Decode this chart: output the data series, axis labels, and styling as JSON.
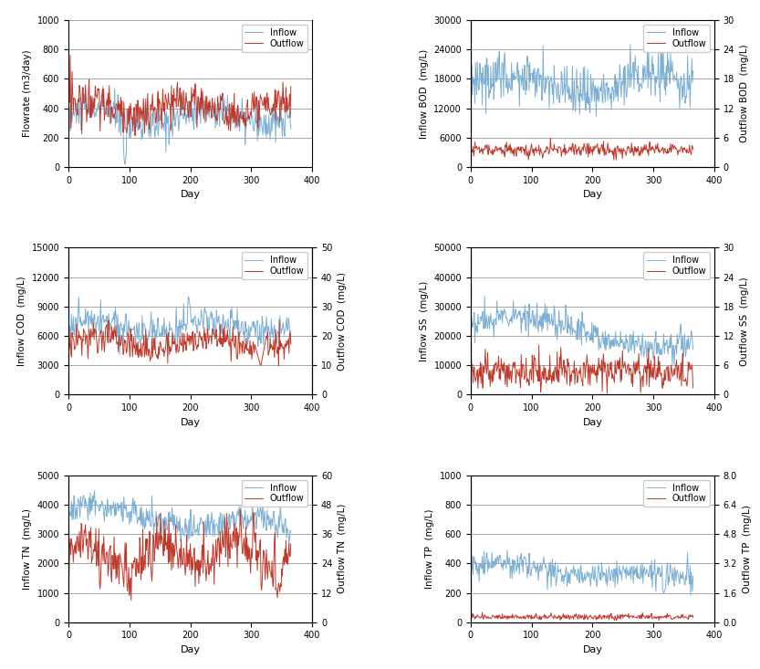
{
  "subplots": [
    {
      "left_label": "Flowrate (m3/day)",
      "right_label": "",
      "left_ylim": [
        0,
        1000
      ],
      "right_ylim": null,
      "left_yticks": [
        0,
        200,
        400,
        600,
        800,
        1000
      ],
      "right_yticks": null,
      "dual_axis": false,
      "inflow_color": "#7cafd4",
      "outflow_color": "#c0392b"
    },
    {
      "left_label": "Inflow BOD  (mg/L)",
      "right_label": "Outflow BOD  (mg/L)",
      "left_ylim": [
        0,
        30000
      ],
      "right_ylim": [
        0,
        30
      ],
      "left_yticks": [
        0,
        6000,
        12000,
        18000,
        24000,
        30000
      ],
      "right_yticks": [
        0,
        6,
        12,
        18,
        24,
        30
      ],
      "dual_axis": true,
      "inflow_color": "#7cafd4",
      "outflow_color": "#c0392b"
    },
    {
      "left_label": "Inflow COD  (mg/L)",
      "right_label": "Outflow COD  (mg/L)",
      "left_ylim": [
        0,
        15000
      ],
      "right_ylim": [
        0,
        50
      ],
      "left_yticks": [
        0,
        3000,
        6000,
        9000,
        12000,
        15000
      ],
      "right_yticks": [
        0,
        10,
        20,
        30,
        40,
        50
      ],
      "dual_axis": true,
      "inflow_color": "#7cafd4",
      "outflow_color": "#c0392b"
    },
    {
      "left_label": "Inflow SS  (mg/L)",
      "right_label": "Outflow SS  (mg/L)",
      "left_ylim": [
        0,
        50000
      ],
      "right_ylim": [
        0,
        30
      ],
      "left_yticks": [
        0,
        10000,
        20000,
        30000,
        40000,
        50000
      ],
      "right_yticks": [
        0,
        6,
        12,
        18,
        24,
        30
      ],
      "dual_axis": true,
      "inflow_color": "#7cafd4",
      "outflow_color": "#c0392b"
    },
    {
      "left_label": "Inflow TN  (mg/L)",
      "right_label": "Outflow TN  (mg/L)",
      "left_ylim": [
        0,
        5000
      ],
      "right_ylim": [
        0,
        60
      ],
      "left_yticks": [
        0,
        1000,
        2000,
        3000,
        4000,
        5000
      ],
      "right_yticks": [
        0,
        12,
        24,
        36,
        48,
        60
      ],
      "dual_axis": true,
      "inflow_color": "#7cafd4",
      "outflow_color": "#c0392b"
    },
    {
      "left_label": "Inflow TP  (mg/L)",
      "right_label": "Outflow TP  (mg/L)",
      "left_ylim": [
        0,
        1000
      ],
      "right_ylim": [
        0,
        8.0
      ],
      "left_yticks": [
        0,
        200,
        400,
        600,
        800,
        1000
      ],
      "right_yticks": [
        0.0,
        1.6,
        3.2,
        4.8,
        6.4,
        8.0
      ],
      "dual_axis": true,
      "inflow_color": "#7cafd4",
      "outflow_color": "#c0392b"
    }
  ],
  "n_days": 365,
  "xlabel": "Day",
  "xticks": [
    0,
    100,
    200,
    300,
    400
  ],
  "xlim": [
    0,
    400
  ],
  "legend_inflow": "Inflow",
  "legend_outflow": "Outflow",
  "grid_color": "#999999",
  "grid_linewidth": 0.6,
  "line_linewidth": 0.7,
  "background_color": "#ffffff",
  "fig_facecolor": "#ffffff"
}
